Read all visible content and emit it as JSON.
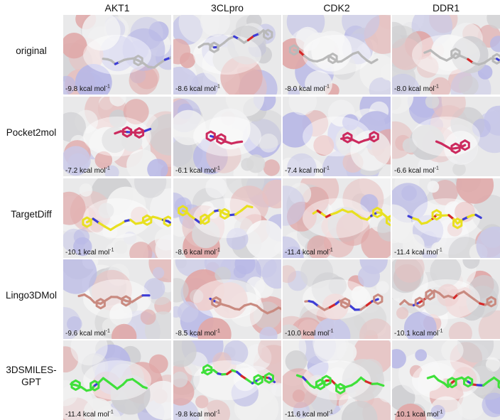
{
  "columns": [
    "AKT1",
    "3CLpro",
    "CDK2",
    "DDR1"
  ],
  "unit": "kcal mol",
  "unit_exponent": "-1",
  "rows": [
    {
      "label": [
        "original"
      ],
      "values": [
        "-9.8",
        "-8.6",
        "-8.0",
        "-8.0"
      ],
      "ligand_colors": {
        "carbon": "#b9b9b9",
        "nitrogen": "#3d3dd6",
        "oxygen": "#d62828"
      }
    },
    {
      "label": [
        "Pocket2mol"
      ],
      "values": [
        "-7.2",
        "-6.1",
        "-7.4",
        "-6.6"
      ],
      "ligand_colors": {
        "carbon": "#cc2a5e",
        "nitrogen": "#3d3dd6",
        "oxygen": "#d62828"
      }
    },
    {
      "label": [
        "TargetDiff"
      ],
      "values": [
        "-10.1",
        "-8.6",
        "-11.4",
        "-11.4"
      ],
      "ligand_colors": {
        "carbon": "#e8e020",
        "nitrogen": "#3d3dd6",
        "oxygen": "#d62828"
      }
    },
    {
      "label": [
        "Lingo3DMol"
      ],
      "values": [
        "-9.6",
        "-8.5",
        "-10.0",
        "-10.1"
      ],
      "ligand_colors": {
        "carbon": "#c98a80",
        "nitrogen": "#3d3dd6",
        "oxygen": "#d62828"
      }
    },
    {
      "label": [
        "3DSMILES-",
        "GPT"
      ],
      "values": [
        "-11.4",
        "-9.8",
        "-11.6",
        "-10.1"
      ],
      "ligand_colors": {
        "carbon": "#3fe03a",
        "nitrogen": "#3d3dd6",
        "oxygen": "#d62828"
      }
    }
  ]
}
